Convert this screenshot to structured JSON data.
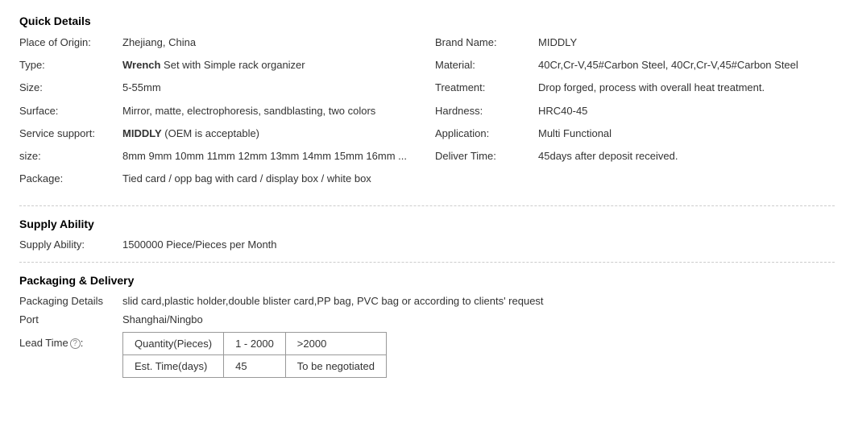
{
  "quickDetails": {
    "title": "Quick Details",
    "left": [
      {
        "label": "Place of Origin:",
        "value": "Zhejiang, China"
      },
      {
        "label": "Type:",
        "boldPrefix": "Wrench",
        "valueRest": " Set with Simple rack organizer"
      },
      {
        "label": "Size:",
        "value": "5-55mm"
      },
      {
        "label": "Surface:",
        "value": "Mirror, matte, electrophoresis, sandblasting, two colors"
      },
      {
        "label": "Service support:",
        "boldPrefix": "MIDDLY",
        "valueRest": " (OEM is acceptable)"
      },
      {
        "label": "size:",
        "value": "8mm 9mm 10mm 11mm 12mm 13mm 14mm 15mm 16mm ..."
      },
      {
        "label": "Package:",
        "value": "Tied card / opp bag with card / display box / white box"
      }
    ],
    "right": [
      {
        "label": "Brand Name:",
        "value": "MIDDLY"
      },
      {
        "label": "Material:",
        "value": "40Cr,Cr-V,45#Carbon Steel, 40Cr,Cr-V,45#Carbon Steel"
      },
      {
        "label": "Treatment:",
        "value": "Drop forged, process with overall heat treatment."
      },
      {
        "label": "Hardness:",
        "value": "HRC40-45"
      },
      {
        "label": "Application:",
        "value": "Multi Functional"
      },
      {
        "label": "Deliver Time:",
        "value": "45days after deposit received."
      }
    ]
  },
  "supply": {
    "title": "Supply Ability",
    "label": "Supply Ability:",
    "value": "1500000 Piece/Pieces per Month"
  },
  "packaging": {
    "title": "Packaging & Delivery",
    "rows": [
      {
        "label": "Packaging Details",
        "value": "slid card,plastic holder,double blister card,PP bag, PVC bag or according to clients' request"
      },
      {
        "label": "Port",
        "value": "Shanghai/Ningbo"
      }
    ],
    "leadLabel": "Lead Time",
    "leadColon": ":",
    "leadTable": {
      "header": [
        "Quantity(Pieces)",
        "1 - 2000",
        ">2000"
      ],
      "row": [
        "Est. Time(days)",
        "45",
        "To be negotiated"
      ]
    }
  }
}
